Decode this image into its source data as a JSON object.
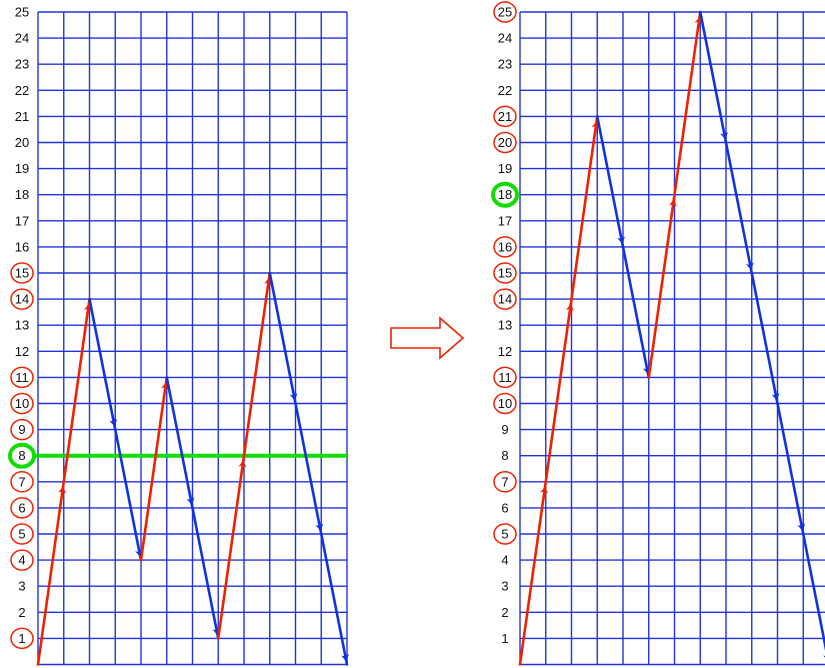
{
  "colors": {
    "grid": "#2233dd",
    "up": "#ee2200",
    "down": "#1133dd",
    "circle": "#ee2200",
    "highlight": "#11dd00",
    "arrow": "#ee2200"
  },
  "diagrams": [
    {
      "id": "left",
      "y_labels": [
        "1",
        "2",
        "3",
        "4",
        "5",
        "6",
        "7",
        "8",
        "9",
        "10",
        "11",
        "12",
        "13",
        "14",
        "15",
        "16",
        "17",
        "18",
        "19",
        "20",
        "21",
        "22",
        "23",
        "24",
        "25"
      ],
      "columns": 12,
      "path": [
        [
          0,
          0
        ],
        [
          1,
          7
        ],
        [
          2,
          14
        ],
        [
          3,
          9
        ],
        [
          4,
          4
        ],
        [
          5,
          11
        ],
        [
          6,
          6
        ],
        [
          7,
          1
        ],
        [
          8,
          8
        ],
        [
          9,
          15
        ],
        [
          10,
          10
        ],
        [
          11,
          5
        ],
        [
          12,
          0
        ]
      ],
      "circled_levels": [
        1,
        4,
        5,
        6,
        7,
        9,
        10,
        11,
        14,
        15
      ],
      "highlight_level": 8,
      "highlight_line": true
    },
    {
      "id": "right",
      "y_labels": [
        "1",
        "2",
        "3",
        "4",
        "5",
        "6",
        "7",
        "8",
        "9",
        "10",
        "11",
        "12",
        "13",
        "14",
        "15",
        "16",
        "17",
        "18",
        "19",
        "20",
        "21",
        "22",
        "23",
        "24",
        "25"
      ],
      "columns": 12,
      "path": [
        [
          0,
          0
        ],
        [
          1,
          7
        ],
        [
          2,
          14
        ],
        [
          3,
          21
        ],
        [
          4,
          16
        ],
        [
          5,
          11
        ],
        [
          6,
          18
        ],
        [
          7,
          25
        ],
        [
          8,
          20
        ],
        [
          9,
          15
        ],
        [
          10,
          10
        ],
        [
          11,
          5
        ],
        [
          12,
          0
        ]
      ],
      "circled_levels": [
        5,
        7,
        10,
        11,
        14,
        15,
        16,
        20,
        21,
        25
      ],
      "highlight_level": 18,
      "highlight_line": false
    }
  ],
  "transition_arrow": "hollow-right-arrow"
}
